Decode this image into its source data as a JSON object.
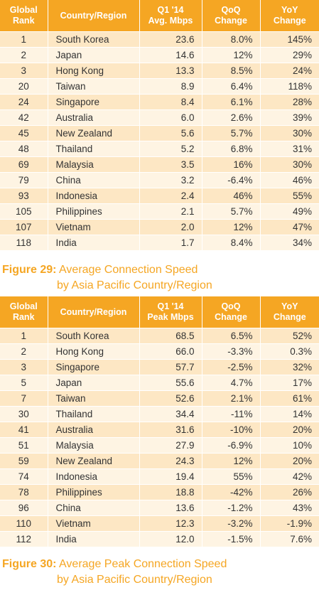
{
  "table1": {
    "headers": [
      "Global\nRank",
      "Country/Region",
      "Q1 '14\nAvg. Mbps",
      "QoQ\nChange",
      "YoY\nChange"
    ],
    "rows": [
      [
        "1",
        "South Korea",
        "23.6",
        "8.0%",
        "145%"
      ],
      [
        "2",
        "Japan",
        "14.6",
        "12%",
        "29%"
      ],
      [
        "3",
        "Hong Kong",
        "13.3",
        "8.5%",
        "24%"
      ],
      [
        "20",
        "Taiwan",
        "8.9",
        "6.4%",
        "118%"
      ],
      [
        "24",
        "Singapore",
        "8.4",
        "6.1%",
        "28%"
      ],
      [
        "42",
        "Australia",
        "6.0",
        "2.6%",
        "39%"
      ],
      [
        "45",
        "New Zealand",
        "5.6",
        "5.7%",
        "30%"
      ],
      [
        "48",
        "Thailand",
        "5.2",
        "6.8%",
        "31%"
      ],
      [
        "69",
        "Malaysia",
        "3.5",
        "16%",
        "30%"
      ],
      [
        "79",
        "China",
        "3.2",
        "-6.4%",
        "46%"
      ],
      [
        "93",
        "Indonesia",
        "2.4",
        "46%",
        "55%"
      ],
      [
        "105",
        "Philippines",
        "2.1",
        "5.7%",
        "49%"
      ],
      [
        "107",
        "Vietnam",
        "2.0",
        "12%",
        "47%"
      ],
      [
        "118",
        "India",
        "1.7",
        "8.4%",
        "34%"
      ]
    ]
  },
  "caption1": {
    "label": "Figure 29:",
    "line1": "Average Connection Speed",
    "line2": "by Asia Pacific Country/Region"
  },
  "table2": {
    "headers": [
      "Global\nRank",
      "Country/Region",
      "Q1 '14\nPeak Mbps",
      "QoQ\nChange",
      "YoY\nChange"
    ],
    "rows": [
      [
        "1",
        "South Korea",
        "68.5",
        "6.5%",
        "52%"
      ],
      [
        "2",
        "Hong Kong",
        "66.0",
        "-3.3%",
        "0.3%"
      ],
      [
        "3",
        "Singapore",
        "57.7",
        "-2.5%",
        "32%"
      ],
      [
        "5",
        "Japan",
        "55.6",
        "4.7%",
        "17%"
      ],
      [
        "7",
        "Taiwan",
        "52.6",
        "2.1%",
        "61%"
      ],
      [
        "30",
        "Thailand",
        "34.4",
        "-11%",
        "14%"
      ],
      [
        "41",
        "Australia",
        "31.6",
        "-10%",
        "20%"
      ],
      [
        "51",
        "Malaysia",
        "27.9",
        "-6.9%",
        "10%"
      ],
      [
        "59",
        "New Zealand",
        "24.3",
        "12%",
        "20%"
      ],
      [
        "74",
        "Indonesia",
        "19.4",
        "55%",
        "42%"
      ],
      [
        "78",
        "Philippines",
        "18.8",
        "-42%",
        "26%"
      ],
      [
        "96",
        "China",
        "13.6",
        "-1.2%",
        "43%"
      ],
      [
        "110",
        "Vietnam",
        "12.3",
        "-3.2%",
        "-1.9%"
      ],
      [
        "112",
        "India",
        "12.0",
        "-1.5%",
        "7.6%"
      ]
    ]
  },
  "caption2": {
    "label": "Figure 30:",
    "line1": "Average Peak Connection Speed",
    "line2": "by Asia Pacific Country/Region"
  },
  "colors": {
    "header_bg": "#f5a623",
    "row_odd": "#fde7c4",
    "row_even": "#fef4e3",
    "caption": "#f5a623"
  }
}
